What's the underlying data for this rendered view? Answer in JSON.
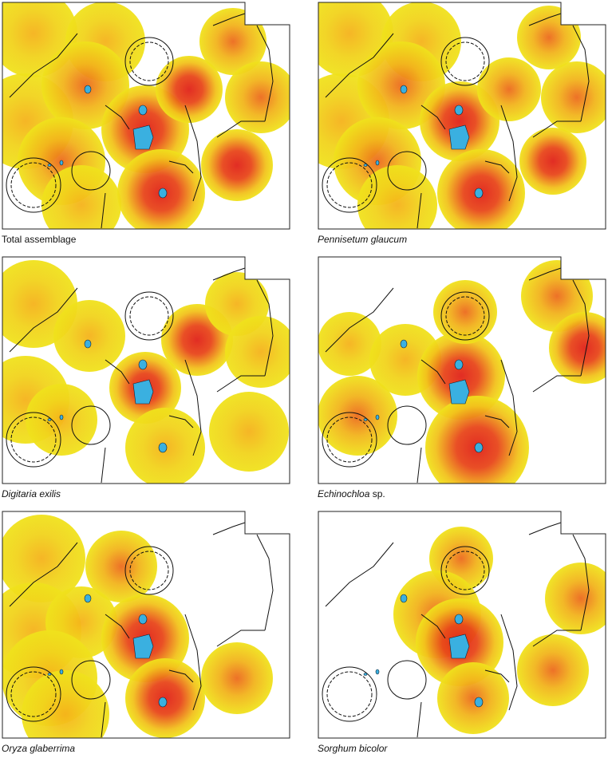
{
  "panels": [
    {
      "caption": [
        {
          "text": "Total assemblage",
          "italic": false
        }
      ]
    },
    {
      "caption": [
        {
          "text": "Pennisetum glaucum",
          "italic": true
        }
      ]
    },
    {
      "caption": [
        {
          "text": "Digitaria exilis",
          "italic": true
        }
      ]
    },
    {
      "caption": [
        {
          "text": "Echinochloa",
          "italic": true
        },
        {
          "text": " sp.",
          "italic": false
        }
      ]
    },
    {
      "caption": [
        {
          "text": "Oryza glaberrima",
          "italic": true
        }
      ]
    },
    {
      "caption": [
        {
          "text": "Sorghum bicolor",
          "italic": true
        }
      ]
    }
  ]
}
